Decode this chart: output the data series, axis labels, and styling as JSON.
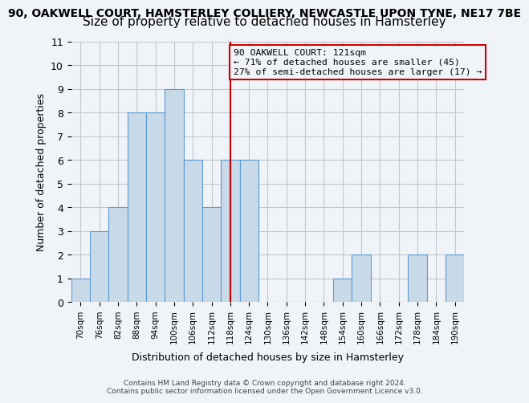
{
  "title_line1": "90, OAKWELL COURT, HAMSTERLEY COLLIERY, NEWCASTLE UPON TYNE, NE17 7BE",
  "title_line2": "Size of property relative to detached houses in Hamsterley",
  "xlabel": "Distribution of detached houses by size in Hamsterley",
  "ylabel": "Number of detached properties",
  "bins": [
    "70sqm",
    "76sqm",
    "82sqm",
    "88sqm",
    "94sqm",
    "100sqm",
    "106sqm",
    "112sqm",
    "118sqm",
    "124sqm",
    "130sqm",
    "136sqm",
    "142sqm",
    "148sqm",
    "154sqm",
    "160sqm",
    "166sqm",
    "172sqm",
    "178sqm",
    "184sqm",
    "190sqm"
  ],
  "bin_edges": [
    70,
    76,
    82,
    88,
    94,
    100,
    106,
    112,
    118,
    124,
    130,
    136,
    142,
    148,
    154,
    160,
    166,
    172,
    178,
    184,
    190
  ],
  "counts": [
    1,
    3,
    4,
    8,
    8,
    9,
    6,
    4,
    6,
    6,
    0,
    0,
    0,
    0,
    1,
    2,
    0,
    0,
    2,
    0,
    2
  ],
  "bar_color": "#c8d9e8",
  "bar_edge_color": "#5b9bd5",
  "grid_color": "#c0c8d0",
  "ref_line_x": 121,
  "annotation_box_text": "90 OAKWELL COURT: 121sqm\n← 71% of detached houses are smaller (45)\n27% of semi-detached houses are larger (17) →",
  "annotation_box_color": "#cc0000",
  "ylim": [
    0,
    11
  ],
  "yticks": [
    0,
    1,
    2,
    3,
    4,
    5,
    6,
    7,
    8,
    9,
    10,
    11
  ],
  "footer_line1": "Contains HM Land Registry data © Crown copyright and database right 2024.",
  "footer_line2": "Contains public sector information licensed under the Open Government Licence v3.0.",
  "background_color": "#f0f4f8",
  "title1_fontsize": 10,
  "title2_fontsize": 11
}
